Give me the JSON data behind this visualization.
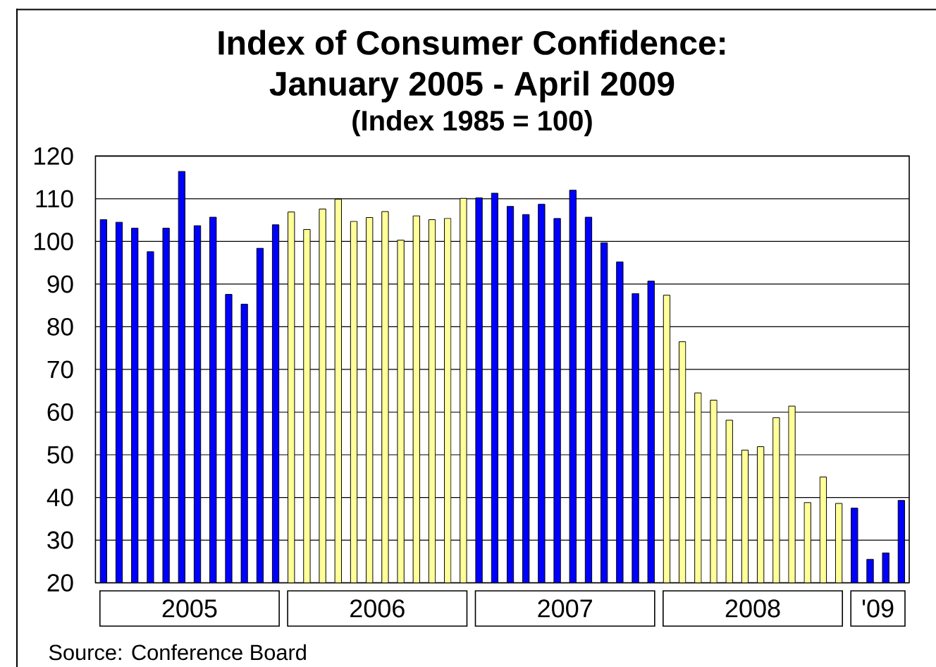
{
  "chart_data": {
    "type": "bar",
    "title": "Index of Consumer Confidence: January 2005 - April 2009",
    "subtitle": "(Index 1985 = 100)",
    "x": [
      "2005-01",
      "2005-02",
      "2005-03",
      "2005-04",
      "2005-05",
      "2005-06",
      "2005-07",
      "2005-08",
      "2005-09",
      "2005-10",
      "2005-11",
      "2005-12",
      "2006-01",
      "2006-02",
      "2006-03",
      "2006-04",
      "2006-05",
      "2006-06",
      "2006-07",
      "2006-08",
      "2006-09",
      "2006-10",
      "2006-11",
      "2006-12",
      "2007-01",
      "2007-02",
      "2007-03",
      "2007-04",
      "2007-05",
      "2007-06",
      "2007-07",
      "2007-08",
      "2007-09",
      "2007-10",
      "2007-11",
      "2007-12",
      "2008-01",
      "2008-02",
      "2008-03",
      "2008-04",
      "2008-05",
      "2008-06",
      "2008-07",
      "2008-08",
      "2008-09",
      "2008-10",
      "2008-11",
      "2008-12",
      "2009-01",
      "2009-02",
      "2009-03",
      "2009-04"
    ],
    "values": [
      105.1,
      104.5,
      103.1,
      97.6,
      103.1,
      116.4,
      103.7,
      105.7,
      87.6,
      85.3,
      98.4,
      103.9,
      106.9,
      102.8,
      107.6,
      109.9,
      104.7,
      105.6,
      107.0,
      100.3,
      106.0,
      105.1,
      105.4,
      110.1,
      110.2,
      111.3,
      108.2,
      106.3,
      108.7,
      105.4,
      112.0,
      105.7,
      99.7,
      95.2,
      87.8,
      90.7,
      87.4,
      76.5,
      64.5,
      62.8,
      58.1,
      51.1,
      51.9,
      58.7,
      61.4,
      38.8,
      44.8,
      38.6,
      37.5,
      25.5,
      27.0,
      39.3
    ],
    "colors": [
      "#0000ff",
      "#0000ff",
      "#0000ff",
      "#0000ff",
      "#0000ff",
      "#0000ff",
      "#0000ff",
      "#0000ff",
      "#0000ff",
      "#0000ff",
      "#0000ff",
      "#0000ff",
      "#ffff99",
      "#ffff99",
      "#ffff99",
      "#ffff99",
      "#ffff99",
      "#ffff99",
      "#ffff99",
      "#ffff99",
      "#ffff99",
      "#ffff99",
      "#ffff99",
      "#ffff99",
      "#0000ff",
      "#0000ff",
      "#0000ff",
      "#0000ff",
      "#0000ff",
      "#0000ff",
      "#0000ff",
      "#0000ff",
      "#0000ff",
      "#0000ff",
      "#0000ff",
      "#0000ff",
      "#ffff99",
      "#ffff99",
      "#ffff99",
      "#ffff99",
      "#ffff99",
      "#ffff99",
      "#ffff99",
      "#ffff99",
      "#ffff99",
      "#ffff99",
      "#ffff99",
      "#ffff99",
      "#0000ff",
      "#0000ff",
      "#0000ff",
      "#0000ff"
    ],
    "xlim": [
      "2004-12-16",
      "2009-04-16"
    ],
    "xticks": [
      {
        "value": "2005-06-16",
        "label": "2005"
      },
      {
        "value": "2006-06-16",
        "label": "2006"
      },
      {
        "value": "2007-06-16",
        "label": "2007"
      },
      {
        "value": "2008-06-16",
        "label": "2008"
      },
      {
        "value": "2009-02-15",
        "label": "'09"
      }
    ],
    "ylim": [
      20,
      120
    ],
    "yticks": [
      20,
      30,
      40,
      50,
      60,
      70,
      80,
      90,
      100,
      110,
      120
    ],
    "grid": "y",
    "annotations": [
      "Source: Conference Board"
    ]
  }
}
